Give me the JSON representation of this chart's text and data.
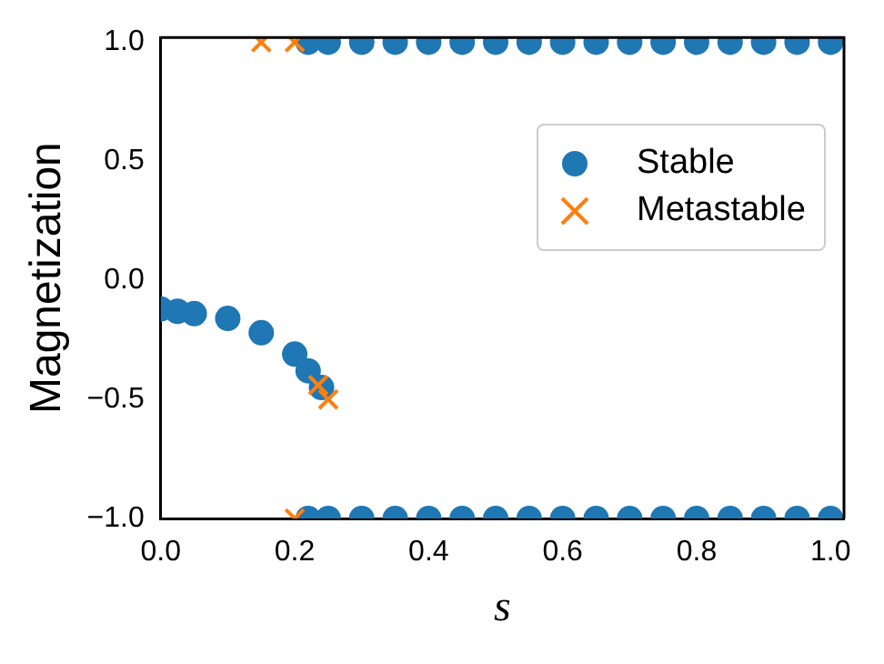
{
  "chart_data": {
    "type": "scatter",
    "xlabel": "s",
    "ylabel": "Magnetization",
    "xlim": [
      0,
      1.02
    ],
    "ylim": [
      -1,
      1.02
    ],
    "xticks": [
      {
        "value": 0,
        "label": "0.0"
      },
      {
        "value": 0.2,
        "label": "0.2"
      },
      {
        "value": 0.4,
        "label": "0.4"
      },
      {
        "value": 0.6,
        "label": "0.6"
      },
      {
        "value": 0.8,
        "label": "0.8"
      },
      {
        "value": 1,
        "label": "1.0"
      }
    ],
    "yticks": [
      {
        "value": -1,
        "label": "−1.0"
      },
      {
        "value": -0.5,
        "label": "−0.5"
      },
      {
        "value": 0,
        "label": "0.0"
      },
      {
        "value": 0.5,
        "label": "0.5"
      },
      {
        "value": 1,
        "label": "1.0"
      }
    ],
    "grid": false,
    "legend": "right",
    "series": [
      {
        "name": "Stable",
        "color": "#1f77b4",
        "marker": "circle",
        "x": [
          0,
          0.025,
          0.05,
          0.1,
          0.15,
          0.2,
          0.22,
          0.24,
          0.22,
          0.25,
          0.3,
          0.35,
          0.4,
          0.45,
          0.5,
          0.55,
          0.6,
          0.65,
          0.7,
          0.75,
          0.8,
          0.85,
          0.9,
          0.95,
          1,
          0.22,
          0.25,
          0.3,
          0.35,
          0.4,
          0.45,
          0.5,
          0.55,
          0.6,
          0.65,
          0.7,
          0.75,
          0.8,
          0.85,
          0.9,
          0.95,
          1
        ],
        "values": [
          -0.12,
          -0.13,
          -0.14,
          -0.16,
          -0.22,
          -0.31,
          -0.38,
          -0.45,
          1,
          1,
          1,
          1,
          1,
          1,
          1,
          1,
          1,
          1,
          1,
          1,
          1,
          1,
          1,
          1,
          1,
          -1,
          -1,
          -1,
          -1,
          -1,
          -1,
          -1,
          -1,
          -1,
          -1,
          -1,
          -1,
          -1,
          -1,
          -1,
          -1,
          -1
        ]
      },
      {
        "name": "Metastable",
        "color": "#ff7f0e",
        "marker": "cross",
        "x": [
          0.15,
          0.2,
          0.2,
          0.235,
          0.25
        ],
        "values": [
          1,
          1,
          -1,
          -0.44,
          -0.5
        ]
      }
    ]
  }
}
